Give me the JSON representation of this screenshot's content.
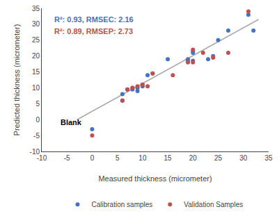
{
  "chart_data": {
    "type": "scatter",
    "xlabel": "Measured thickness (micrometer)",
    "ylabel": "Predicted thickness (micrometer)",
    "series": [
      {
        "type": "line",
        "color": "#AAAAAA",
        "x": [
          -3,
          33
        ],
        "values": [
          0.0,
          31.5
        ]
      },
      {
        "type": "scatter",
        "name": "Calibration samples",
        "color": "#4472C4",
        "marker": "circle",
        "x": [
          0,
          6,
          6,
          7,
          8,
          8,
          9,
          9,
          10,
          10,
          11,
          12,
          15,
          19,
          19,
          20,
          20,
          20,
          23,
          24,
          25,
          27,
          31,
          32
        ],
        "values": [
          -3,
          6,
          8,
          9.5,
          9.5,
          10,
          9,
          10,
          10.5,
          11,
          14,
          14.5,
          19,
          18.5,
          19,
          18.5,
          21.5,
          21,
          19,
          20,
          25,
          28,
          33,
          28
        ]
      },
      {
        "type": "scatter",
        "name": "Validation Samples",
        "color": "#C0504D",
        "marker": "circle",
        "x": [
          0,
          6,
          7,
          8,
          9,
          10,
          11,
          12,
          16,
          19,
          20,
          20,
          22,
          24,
          27,
          31
        ],
        "values": [
          -5,
          6,
          9.5,
          10,
          10.5,
          11,
          10.5,
          14.5,
          14,
          18,
          18,
          22,
          21,
          19.5,
          21,
          34
        ]
      }
    ],
    "annotations": [
      {
        "text": "R²: 0.93, RMSEC: 2.16",
        "color": "#4472C4"
      },
      {
        "text": "R²: 0.89, RMSEP: 2.73",
        "color": "#C0504D"
      },
      {
        "text": "Blank",
        "x": -6.5,
        "y": -2.5,
        "color": "#000000"
      }
    ],
    "xlim": [
      -10,
      35
    ],
    "ylim": [
      -10,
      35
    ],
    "xticks": [
      -10,
      -5,
      0,
      5,
      10,
      15,
      20,
      25,
      30,
      35
    ],
    "yticks": [
      -10,
      -5,
      0,
      5,
      10,
      15,
      20,
      25,
      30,
      35
    ],
    "grid": false,
    "legend": "bottom"
  }
}
